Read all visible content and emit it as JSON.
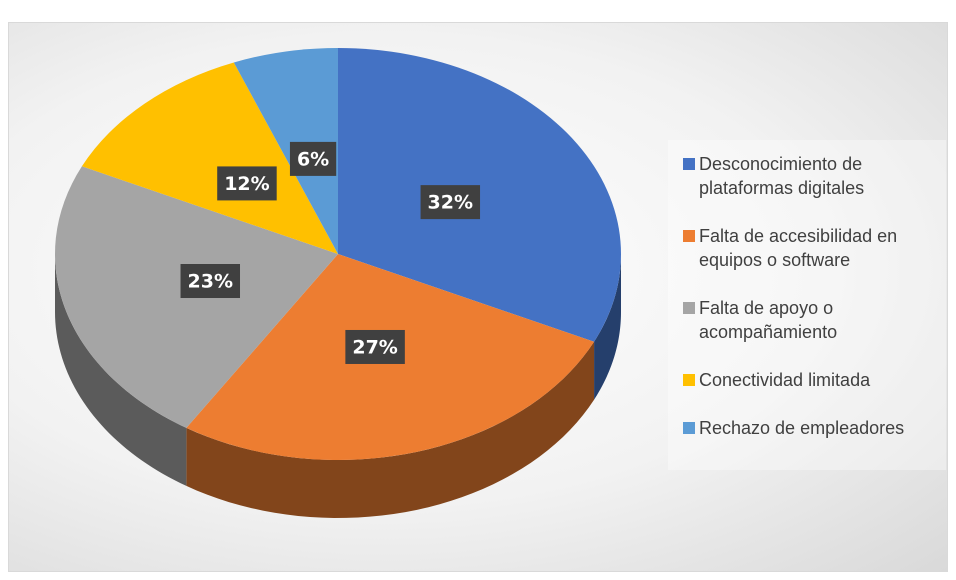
{
  "chart_data": {
    "type": "pie",
    "categories": [
      "Desconocimiento de plataformas digitales",
      "Falta de accesibilidad en equipos o software",
      "Falta de apoyo o acompañamiento",
      "Conectividad limitada",
      "Rechazo de empleadores"
    ],
    "values": [
      32,
      27,
      23,
      12,
      6
    ],
    "value_labels": [
      "32%",
      "27%",
      "23%",
      "12%",
      "6%"
    ],
    "colors": [
      "#4472c4",
      "#ed7d31",
      "#a5a5a5",
      "#ffc000",
      "#5b9bd5"
    ],
    "legend": "right"
  }
}
